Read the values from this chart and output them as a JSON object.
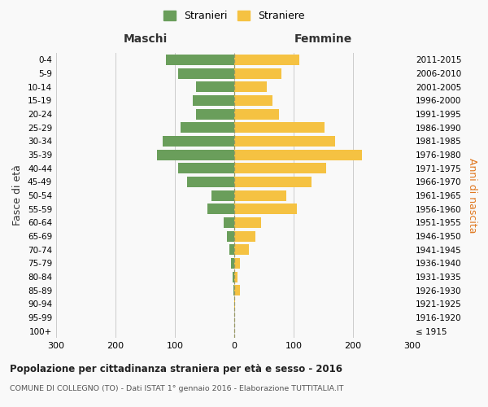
{
  "age_groups": [
    "100+",
    "95-99",
    "90-94",
    "85-89",
    "80-84",
    "75-79",
    "70-74",
    "65-69",
    "60-64",
    "55-59",
    "50-54",
    "45-49",
    "40-44",
    "35-39",
    "30-34",
    "25-29",
    "20-24",
    "15-19",
    "10-14",
    "5-9",
    "0-4"
  ],
  "birth_years": [
    "≤ 1915",
    "1916-1920",
    "1921-1925",
    "1926-1930",
    "1931-1935",
    "1936-1940",
    "1941-1945",
    "1946-1950",
    "1951-1955",
    "1956-1960",
    "1961-1965",
    "1966-1970",
    "1971-1975",
    "1976-1980",
    "1981-1985",
    "1986-1990",
    "1991-1995",
    "1996-2000",
    "2001-2005",
    "2006-2010",
    "2011-2015"
  ],
  "stranieri": [
    0,
    0,
    0,
    2,
    3,
    5,
    8,
    12,
    18,
    45,
    38,
    80,
    95,
    130,
    120,
    90,
    65,
    70,
    65,
    95,
    115
  ],
  "straniere": [
    0,
    0,
    2,
    10,
    5,
    10,
    25,
    35,
    45,
    105,
    88,
    130,
    155,
    215,
    170,
    152,
    75,
    65,
    55,
    80,
    110
  ],
  "male_color": "#6a9e5b",
  "female_color": "#f5c242",
  "title": "Popolazione per cittadinanza straniera per età e sesso - 2016",
  "subtitle": "COMUNE DI COLLEGNO (TO) - Dati ISTAT 1° gennaio 2016 - Elaborazione TUTTITALIA.IT",
  "xlabel_left": "Maschi",
  "xlabel_right": "Femmine",
  "ylabel_left": "Fasce di età",
  "ylabel_right": "Anni di nascita",
  "legend_male": "Stranieri",
  "legend_female": "Straniere",
  "xlim": 300,
  "background_color": "#f9f9f9",
  "grid_color": "#cccccc"
}
